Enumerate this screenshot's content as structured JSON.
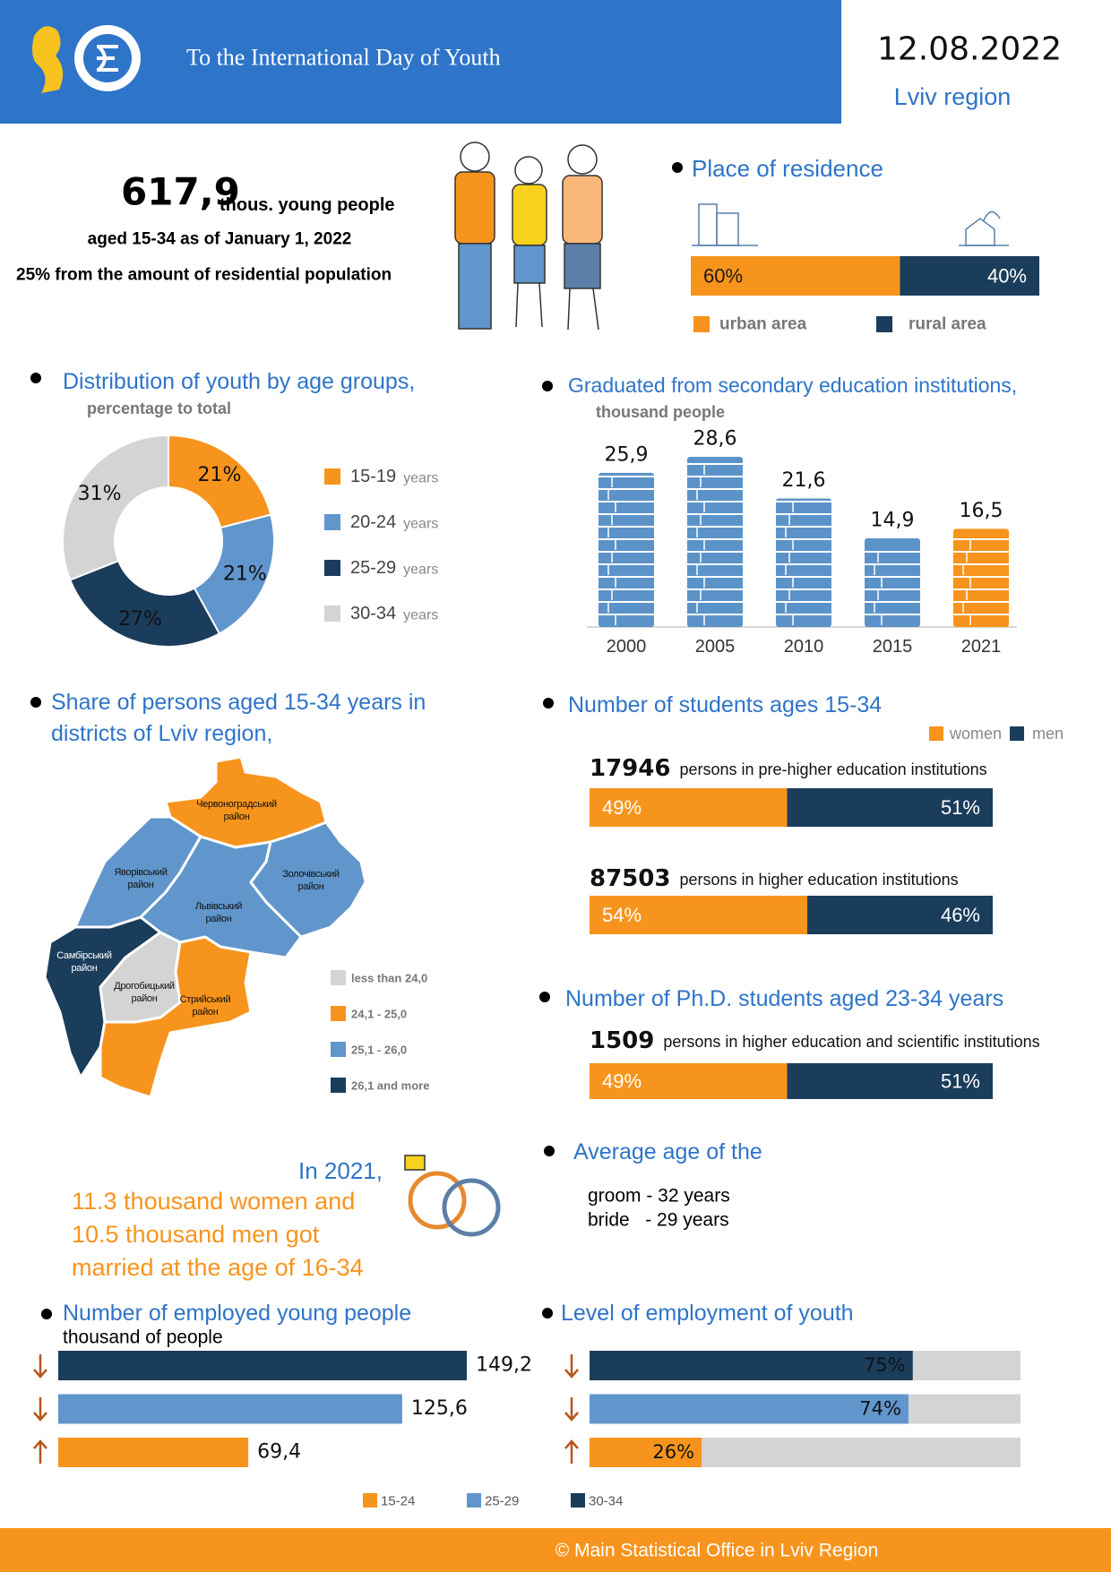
{
  "header": {
    "title": "To the International Day of Youth",
    "date": "12.08.2022",
    "region": "Lviv region"
  },
  "youth": {
    "number": "617,9",
    "unit": "thous. young people",
    "line2": "aged 15-34 as of January 1, 2022",
    "line3": "25% from the amount of residential population"
  },
  "residence": {
    "type": "stacked-bar",
    "title": "Place of residence",
    "series": [
      {
        "name": "urban area",
        "color": "#f7941d"
      },
      {
        "name": "rural area",
        "color": "#1b3d5c"
      }
    ],
    "values": [
      60,
      40
    ],
    "value_labels": [
      "60%",
      "40%"
    ]
  },
  "age_groups": {
    "type": "donut",
    "title": "Distribution of youth by age groups,",
    "subtitle": "percentage to total",
    "categories": [
      "15-19",
      "20-24",
      "25-29",
      "30-34"
    ],
    "legend_unit": "years",
    "colors": [
      "#f7941d",
      "#6096cc",
      "#1b3d5c",
      "#d4d4d4"
    ],
    "values": [
      21,
      21,
      27,
      31
    ],
    "value_labels": [
      "21%",
      "21%",
      "27%",
      "31%"
    ]
  },
  "graduates": {
    "type": "bar",
    "title": "Graduated from secondary education institutions,",
    "subtitle": "thousand people",
    "categories": [
      "2000",
      "2005",
      "2010",
      "2015",
      "2021"
    ],
    "colors": [
      "#5b93c9",
      "#5b93c9",
      "#5b93c9",
      "#5b93c9",
      "#f7941d"
    ],
    "values": [
      25.9,
      28.6,
      21.6,
      14.9,
      16.5
    ],
    "value_labels": [
      "25,9",
      "28,6",
      "21,6",
      "14,9",
      "16,5"
    ]
  },
  "districts_map": {
    "title_lines": [
      "Share of persons aged 15-34 years in",
      "districts of Lviv region,"
    ],
    "legend": [
      {
        "label": "less than 24,0",
        "color": "#d4d4d4"
      },
      {
        "label": "24,1 - 25,0",
        "color": "#f7941d"
      },
      {
        "label": "25,1 - 26,0",
        "color": "#6096cc"
      },
      {
        "label": "26,1 and more",
        "color": "#1b3d5c"
      }
    ],
    "districts": [
      {
        "label": [
          "Червоноградський",
          "район"
        ],
        "color": "#f7941d"
      },
      {
        "label": [
          "Яворівський",
          "район"
        ],
        "color": "#6096cc"
      },
      {
        "label": [
          "Львівський",
          "район"
        ],
        "color": "#6096cc"
      },
      {
        "label": [
          "Золочівський",
          "район"
        ],
        "color": "#6096cc"
      },
      {
        "label": [
          "Самбірський",
          "район"
        ],
        "color": "#1b3d5c"
      },
      {
        "label": [
          "Дрогобицький",
          "район"
        ],
        "color": "#d4d4d4"
      },
      {
        "label": [
          "Стрийський",
          "район"
        ],
        "color": "#f7941d"
      }
    ]
  },
  "students": {
    "type": "stacked-bar",
    "title": "Number of students ages 15-34",
    "series": [
      {
        "name": "women",
        "color": "#f7941d"
      },
      {
        "name": "men",
        "color": "#1b3d5c"
      }
    ],
    "rows": [
      {
        "count": 17946,
        "text": "persons in pre-higher education institutions",
        "values": [
          49,
          51
        ],
        "value_labels": [
          "49%",
          "51%"
        ]
      },
      {
        "count": 87503,
        "text": "persons in higher education institutions",
        "values": [
          54,
          46
        ],
        "value_labels": [
          "54%",
          "46%"
        ]
      }
    ]
  },
  "phd": {
    "type": "stacked-bar",
    "title": "Number of  Ph.D. students aged 23-34 years",
    "colors": [
      "#f7941d",
      "#1b3d5c"
    ],
    "rows": [
      {
        "count": 1509,
        "text": "persons in higher education and scientific institutions",
        "values": [
          49,
          51
        ],
        "value_labels": [
          "49%",
          "51%"
        ]
      }
    ]
  },
  "marriage": {
    "lead": "In 2021,",
    "lines": [
      "11.3 thousand women and",
      "10.5 thousand men got",
      "married at the age of 16-34"
    ]
  },
  "average_age": {
    "title": "Average age of the",
    "lines": [
      "groom - 32 years",
      "bride   - 29 years"
    ]
  },
  "age_legend": {
    "categories": [
      "15-24",
      "25-29",
      "30-34"
    ],
    "colors": [
      "#f7941d",
      "#6096cc",
      "#1b3d5c"
    ]
  },
  "employed": {
    "type": "hbar",
    "title": "Number of employed young people",
    "subtitle": "thousand of people",
    "values": [
      69.4,
      125.6,
      149.2
    ],
    "value_labels": [
      "69,4",
      "125,6",
      "149,2"
    ]
  },
  "employment_level": {
    "type": "hbar",
    "title": "Level of employment of youth",
    "xlim": [
      0,
      100
    ],
    "values": [
      26,
      74,
      75
    ],
    "value_labels": [
      "26%",
      "74%",
      "75%"
    ]
  },
  "footer": {
    "text": "©  Main Statistical Office in Lviv Region"
  }
}
